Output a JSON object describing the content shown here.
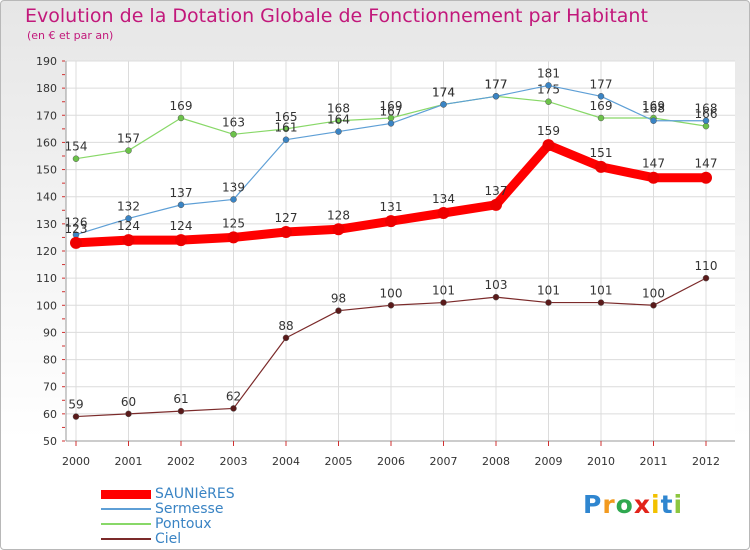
{
  "chart_data": {
    "type": "line",
    "title": "Evolution de la Dotation Globale de Fonctionnement par Habitant",
    "subtitle": "(en € et par an)",
    "xlabel": "",
    "ylabel": "",
    "ylim": [
      50,
      190
    ],
    "yticks": [
      50,
      60,
      70,
      80,
      90,
      100,
      110,
      120,
      130,
      140,
      150,
      160,
      170,
      180,
      190
    ],
    "categories": [
      "2000",
      "2001",
      "2002",
      "2003",
      "2004",
      "2005",
      "2006",
      "2007",
      "2008",
      "2009",
      "2010",
      "2011",
      "2012"
    ],
    "series": [
      {
        "name": "Pontoux",
        "color": "#88d868",
        "marker": "#6cc24a",
        "width": 1.2,
        "values": [
          154,
          157,
          169,
          163,
          165,
          168,
          169,
          174,
          177,
          175,
          169,
          169,
          166
        ]
      },
      {
        "name": "Sermesse",
        "color": "#5e9fd6",
        "marker": "#3a84c4",
        "width": 1.2,
        "values": [
          126,
          132,
          137,
          139,
          161,
          164,
          167,
          174,
          177,
          181,
          177,
          168,
          168
        ]
      },
      {
        "name": "Ciel",
        "color": "#7b2a2a",
        "marker": "#5a1a1a",
        "width": 1.2,
        "values": [
          59,
          60,
          61,
          62,
          88,
          98,
          100,
          101,
          103,
          101,
          101,
          100,
          110
        ]
      },
      {
        "name": "SAUNIèRES",
        "color": "#ff0000",
        "marker": "#ee0000",
        "width": 9,
        "values": [
          123,
          124,
          124,
          125,
          127,
          128,
          131,
          134,
          137,
          159,
          151,
          147,
          147
        ]
      }
    ],
    "legend": [
      "SAUNIèRES",
      "Sermesse",
      "Pontoux",
      "Ciel"
    ],
    "legend_position": "bottom-left"
  },
  "brand": {
    "text": "Proxiti",
    "letters": [
      "P",
      "r",
      "o",
      "x",
      "i",
      "t",
      "i"
    ]
  }
}
